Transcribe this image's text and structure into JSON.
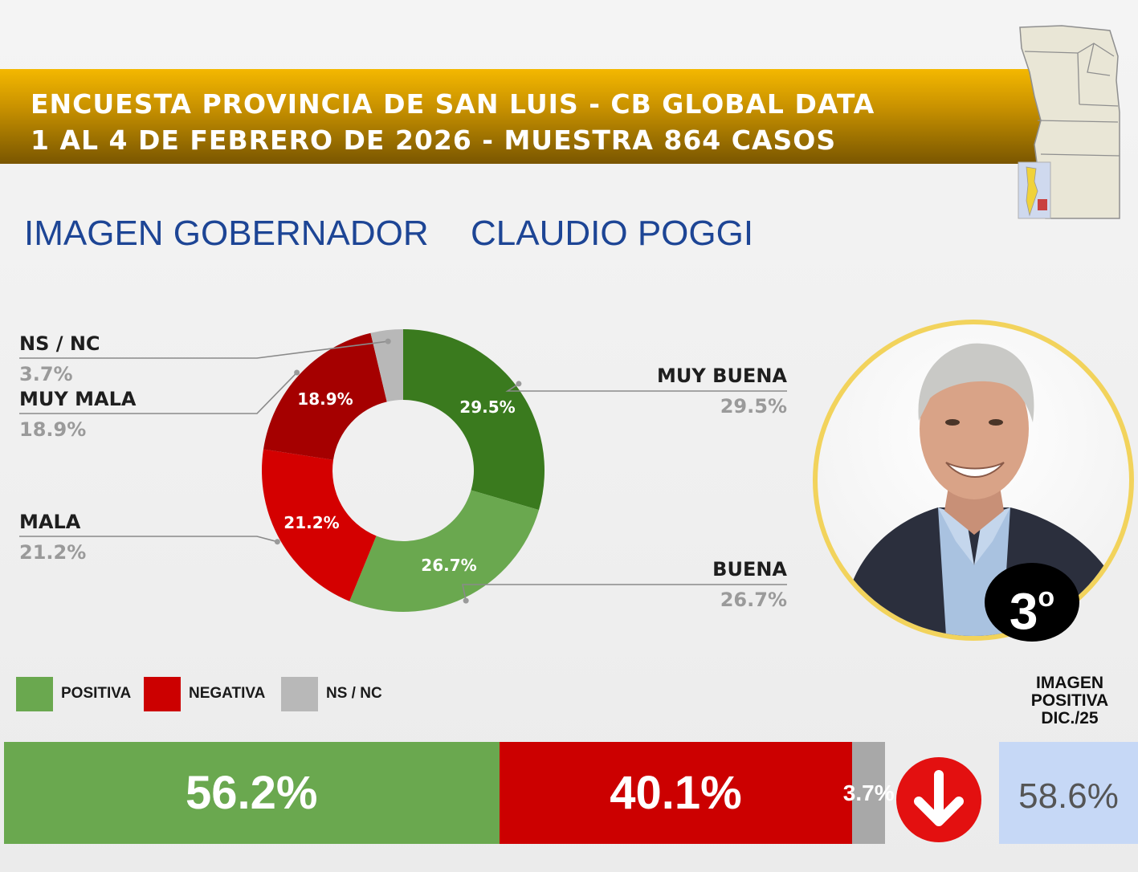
{
  "header": {
    "line1": "ENCUESTA PROVINCIA DE SAN LUIS - CB GLOBAL DATA",
    "line2": "1 AL 4 DE FEBRERO DE 2026 - MUESTRA 864 CASOS",
    "map_icon": "san-luis-province-map"
  },
  "title": {
    "part1": "IMAGEN GOBERNADOR",
    "part2": "CLAUDIO POGGI"
  },
  "photo": {
    "subject_icon": "governor-portrait",
    "rank": "3",
    "rank_suffix": "o"
  },
  "colors": {
    "muy_buena": "#3a7a1e",
    "buena": "#6aa84f",
    "mala": "#d40000",
    "muy_mala": "#a50000",
    "ns_nc": "#b8b8b8",
    "header": "#c99200",
    "title": "#1d4595",
    "prev_box": "#c6d8f6"
  },
  "chart_data": [
    {
      "type": "pie",
      "donut": true,
      "title": "IMAGEN GOBERNADOR  CLAUDIO POGGI",
      "slices": [
        {
          "name": "MUY BUENA",
          "value": 29.5,
          "label": "29.5%",
          "color": "#3a7a1e"
        },
        {
          "name": "BUENA",
          "value": 26.7,
          "label": "26.7%",
          "color": "#6aa84f"
        },
        {
          "name": "MALA",
          "value": 21.2,
          "label": "21.2%",
          "color": "#d40000"
        },
        {
          "name": "MUY MALA",
          "value": 18.9,
          "label": "18.9%",
          "color": "#a50000"
        },
        {
          "name": "NS / NC",
          "value": 3.7,
          "label": "3.7%",
          "color": "#b8b8b8"
        }
      ]
    },
    {
      "type": "bar",
      "stacked": true,
      "orientation": "horizontal",
      "legend": [
        "POSITIVA",
        "NEGATIVA",
        "NS / NC"
      ],
      "segments": [
        {
          "name": "POSITIVA",
          "value": 56.2,
          "label": "56.2%",
          "color": "#6aa84f"
        },
        {
          "name": "NEGATIVA",
          "value": 40.1,
          "label": "40.1%",
          "color": "#cc0000"
        },
        {
          "name": "NS / NC",
          "value": 3.7,
          "label": "3.7%",
          "color": "#a8a8a8"
        }
      ],
      "trend": "down",
      "comparison": {
        "heading": [
          "IMAGEN",
          "POSITIVA",
          "DIC./25"
        ],
        "value": 58.6,
        "label": "58.6%"
      }
    }
  ]
}
